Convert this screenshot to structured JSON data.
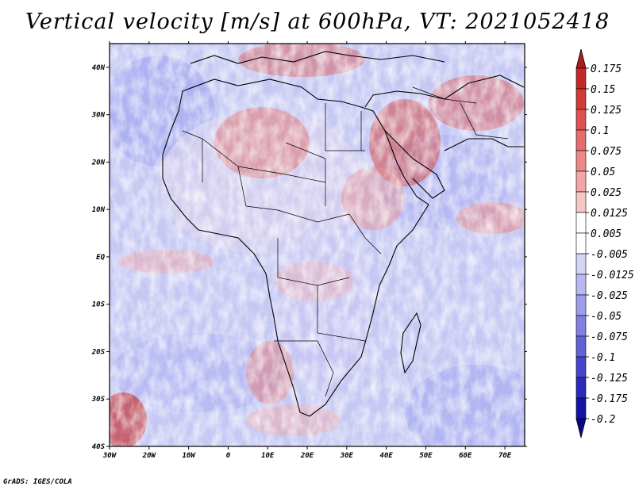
{
  "title": "Vertical velocity [m/s] at 600hPa, VT: 2021052418",
  "credit": "GrADS: IGES/COLA",
  "map": {
    "lon_range": [
      -30,
      75
    ],
    "lat_range": [
      -40,
      45
    ],
    "lon_ticks": [
      "30W",
      "20W",
      "10W",
      "0",
      "10E",
      "20E",
      "30E",
      "40E",
      "50E",
      "60E",
      "70E"
    ],
    "lat_ticks": [
      "40N",
      "30N",
      "20N",
      "10N",
      "EQ",
      "10S",
      "20S",
      "30S",
      "40S"
    ]
  },
  "colorbar": {
    "labels": [
      "0.175",
      "0.15",
      "0.125",
      "0.1",
      "0.075",
      "0.05",
      "0.025",
      "0.0125",
      "0.005",
      "-0.005",
      "-0.0125",
      "-0.025",
      "-0.05",
      "-0.075",
      "-0.1",
      "-0.125",
      "-0.175",
      "-0.2"
    ],
    "colors": [
      "#b01c1c",
      "#c42828",
      "#d23a3a",
      "#de5252",
      "#e66b6b",
      "#ee8888",
      "#f4a6a6",
      "#f9c6c6",
      "#ffffff",
      "#ffffff",
      "#d4d4f7",
      "#b8b8f1",
      "#9c9cea",
      "#8080e2",
      "#6262d8",
      "#4545cc",
      "#2a2abb",
      "#1515a5",
      "#08088a"
    ]
  }
}
